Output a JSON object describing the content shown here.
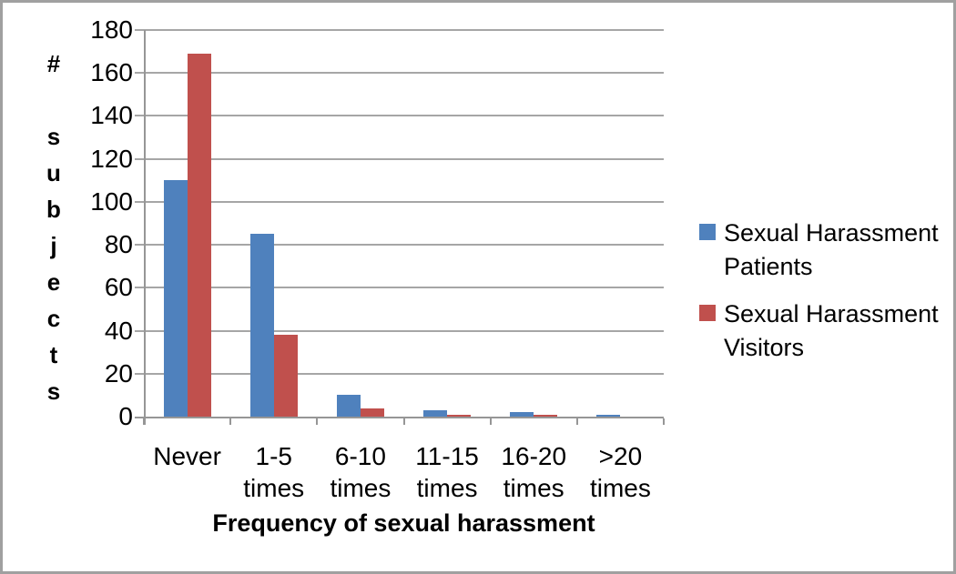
{
  "chart_data": {
    "type": "bar",
    "title": "",
    "xlabel": "Frequency of sexual harassment",
    "ylabel": "# subjects",
    "categories": [
      "Never",
      "1-5 times",
      "6-10 times",
      "11-15 times",
      "16-20 times",
      ">20 times"
    ],
    "series": [
      {
        "name": "Sexual Harassment Patients",
        "name_lines": [
          "Sexual Harassment",
          "Patients"
        ],
        "color": "#4f81bd",
        "values": [
          110,
          85,
          10,
          3,
          2,
          1
        ]
      },
      {
        "name": "Sexual Harassment Visitors",
        "name_lines": [
          "Sexual Harassment",
          "Visitors"
        ],
        "color": "#c0504d",
        "values": [
          169,
          38,
          4,
          1,
          1,
          0
        ]
      }
    ],
    "ylim": [
      0,
      180
    ],
    "yticks": [
      0,
      20,
      40,
      60,
      80,
      100,
      120,
      140,
      160,
      180
    ],
    "grid": true,
    "legend_position": "right"
  },
  "style": {
    "gridline_color": "#a6a6a6",
    "axis_color": "#969696",
    "figure_border_color": "#a0a0a0",
    "background": "#ffffff",
    "text_color": "#000000"
  }
}
